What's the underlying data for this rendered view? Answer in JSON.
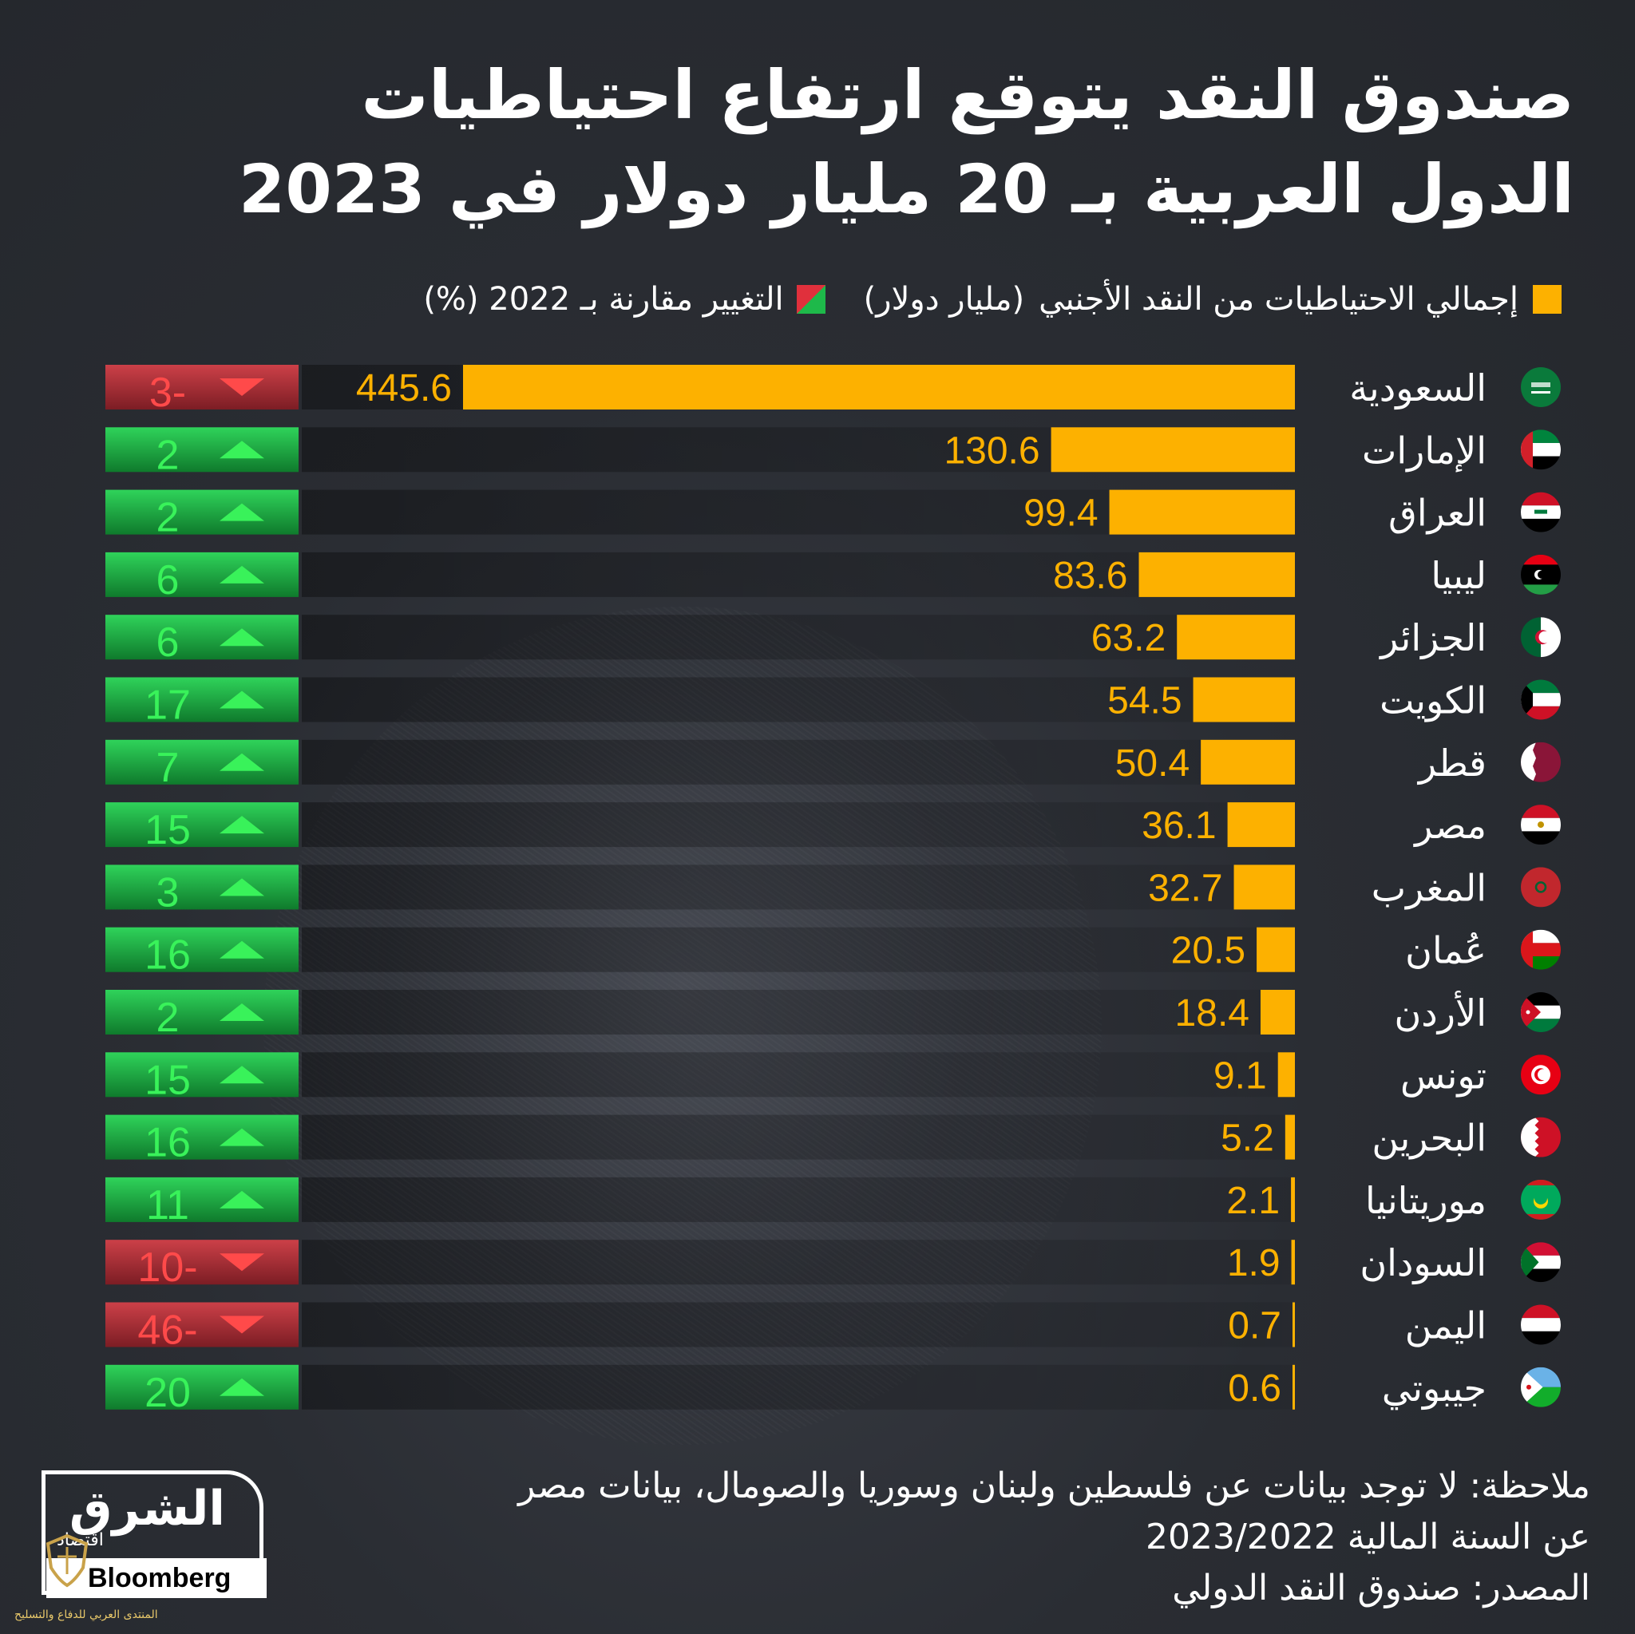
{
  "title_line1": "صندوق النقد يتوقع ارتفاع احتياطيات",
  "title_line2": "الدول العربية بـ 20 مليار دولار في 2023",
  "legend": {
    "total": "إجمالي الاحتياطيات من النقد الأجنبي",
    "total_unit": "(مليار دولار)",
    "change": "التغيير مقارنة بـ 2022 (%)"
  },
  "colors": {
    "bar": "#fdb100",
    "up": "#1eb94a",
    "down": "#b8353c",
    "value_text": "#fdb100",
    "up_text": "#39f25a",
    "down_text": "#ff4a4a"
  },
  "chart_data": {
    "type": "bar",
    "orientation": "horizontal",
    "categories": [
      "السعودية",
      "الإمارات",
      "العراق",
      "ليبيا",
      "الجزائر",
      "الكويت",
      "قطر",
      "مصر",
      "المغرب",
      "عُمان",
      "الأردن",
      "تونس",
      "البحرين",
      "موريتانيا",
      "السودان",
      "اليمن",
      "جيبوتي"
    ],
    "series": [
      {
        "name": "إجمالي الاحتياطيات من النقد الأجنبي (مليار دولار)",
        "values": [
          445.6,
          130.6,
          99.4,
          83.6,
          63.2,
          54.5,
          50.4,
          36.1,
          32.7,
          20.5,
          18.4,
          9.1,
          5.2,
          2.1,
          1.9,
          0.7,
          0.6
        ],
        "labels": [
          "445.6",
          "130.6",
          "99.4",
          "83.6",
          "63.2",
          "54.5",
          "50.4",
          "36.1",
          "32.7",
          "20.5",
          "18.4",
          "9.1",
          "5.2",
          "2.1",
          "1.9",
          "0.7",
          "0.6"
        ]
      },
      {
        "name": "التغيير مقارنة بـ 2022 (%)",
        "values": [
          -3,
          2,
          2,
          6,
          6,
          17,
          7,
          15,
          3,
          16,
          2,
          15,
          16,
          11,
          -10,
          -46,
          20
        ],
        "labels": [
          "3-",
          "2",
          "2",
          "6",
          "6",
          "17",
          "7",
          "15",
          "3",
          "16",
          "2",
          "15",
          "16",
          "11",
          "10-",
          "46-",
          "20"
        ]
      }
    ],
    "flags": [
      "flag-saudi-icon",
      "flag-uae-icon",
      "flag-iraq-icon",
      "flag-libya-icon",
      "flag-algeria-icon",
      "flag-kuwait-icon",
      "flag-qatar-icon",
      "flag-egypt-icon",
      "flag-morocco-icon",
      "flag-oman-icon",
      "flag-jordan-icon",
      "flag-tunisia-icon",
      "flag-bahrain-icon",
      "flag-mauritania-icon",
      "flag-sudan-icon",
      "flag-yemen-icon",
      "flag-djibouti-icon"
    ]
  },
  "note_line1": "ملاحظة: لا توجد بيانات عن فلسطين ولبنان وسوريا والصومال، بيانات مصر",
  "note_line2": "عن السنة المالية 2023/2022",
  "source": "المصدر: صندوق النقد الدولي",
  "logo": {
    "main": "الشرق",
    "sub": "اقتصاد",
    "with": "مع",
    "partner": "Bloomberg"
  },
  "watermark": "المنتدى العربي للدفاع والتسليح"
}
